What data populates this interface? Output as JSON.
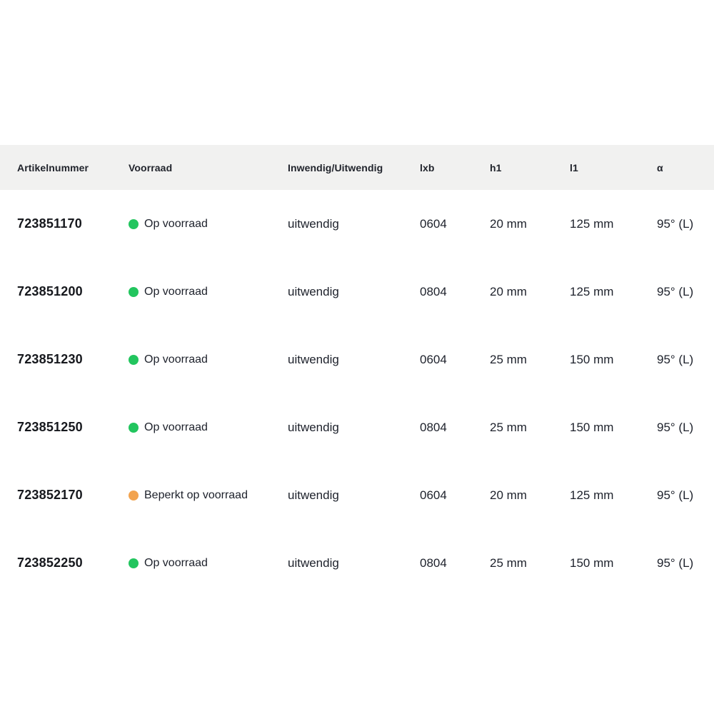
{
  "table": {
    "columns": [
      {
        "key": "artikelnummer",
        "label": "Artikelnummer"
      },
      {
        "key": "voorraad",
        "label": "Voorraad"
      },
      {
        "key": "inwendig_uitwendig",
        "label": "Inwendig/Uitwendig"
      },
      {
        "key": "lxb",
        "label": "lxb"
      },
      {
        "key": "h1",
        "label": "h1"
      },
      {
        "key": "l1",
        "label": "l1"
      },
      {
        "key": "alpha",
        "label": "α"
      }
    ],
    "rows": [
      {
        "artikelnummer": "723851170",
        "voorraad": "Op voorraad",
        "voorraad_status": "in_stock",
        "inwendig_uitwendig": "uitwendig",
        "lxb": "0604",
        "h1": "20 mm",
        "l1": "125 mm",
        "alpha": "95° (L)"
      },
      {
        "artikelnummer": "723851200",
        "voorraad": "Op voorraad",
        "voorraad_status": "in_stock",
        "inwendig_uitwendig": "uitwendig",
        "lxb": "0804",
        "h1": "20 mm",
        "l1": "125 mm",
        "alpha": "95° (L)"
      },
      {
        "artikelnummer": "723851230",
        "voorraad": "Op voorraad",
        "voorraad_status": "in_stock",
        "inwendig_uitwendig": "uitwendig",
        "lxb": "0604",
        "h1": "25 mm",
        "l1": "150 mm",
        "alpha": "95° (L)"
      },
      {
        "artikelnummer": "723851250",
        "voorraad": "Op voorraad",
        "voorraad_status": "in_stock",
        "inwendig_uitwendig": "uitwendig",
        "lxb": "0804",
        "h1": "25 mm",
        "l1": "150 mm",
        "alpha": "95° (L)"
      },
      {
        "artikelnummer": "723852170",
        "voorraad": "Beperkt op voorraad",
        "voorraad_status": "limited",
        "inwendig_uitwendig": "uitwendig",
        "lxb": "0604",
        "h1": "20 mm",
        "l1": "125 mm",
        "alpha": "95° (L)"
      },
      {
        "artikelnummer": "723852250",
        "voorraad": "Op voorraad",
        "voorraad_status": "in_stock",
        "inwendig_uitwendig": "uitwendig",
        "lxb": "0804",
        "h1": "25 mm",
        "l1": "150 mm",
        "alpha": "95° (L)"
      }
    ]
  },
  "colors": {
    "header_bg": "#f1f1f0",
    "in_stock_dot": "#22c55e",
    "limited_stock_dot": "#f2a34f",
    "text": "#1d212b"
  }
}
